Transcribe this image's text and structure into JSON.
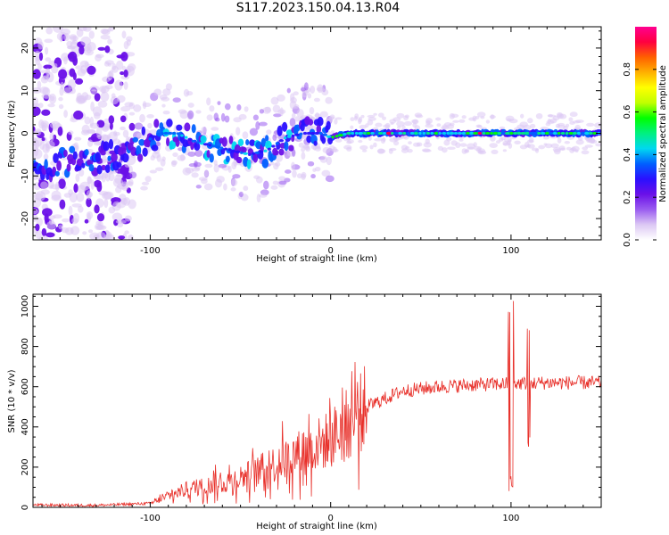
{
  "title": "S117.2023.150.04.13.R04",
  "chart_data": [
    {
      "type": "heatmap",
      "xlabel": "Height of straight line (km)",
      "ylabel": "Frequency (Hz)",
      "xlim": [
        -165,
        150
      ],
      "ylim": [
        -25,
        25
      ],
      "x_ticks": [
        -100,
        0,
        100
      ],
      "y_ticks": [
        -20,
        -10,
        0,
        10,
        20
      ],
      "colorbar": {
        "label": "Normalized spectral amplitude",
        "range": [
          0,
          1
        ],
        "ticks": [
          0.0,
          0.2,
          0.4,
          0.6,
          0.8
        ],
        "colors": [
          "#ffffff",
          "#dcc8f4",
          "#9a5cf0",
          "#6a10e8",
          "#2a10ff",
          "#0060ff",
          "#00d8f0",
          "#00f080",
          "#00ff00",
          "#c0ff00",
          "#ffff00",
          "#ffb000",
          "#ff6000",
          "#ff0040",
          "#ff0090"
        ]
      },
      "ridge": {
        "description_x": [
          -165,
          -150,
          -130,
          -110,
          -95,
          -85,
          -75,
          -65,
          -55,
          -45,
          -35,
          -25,
          -15,
          -5,
          0,
          10,
          50,
          90,
          100,
          110,
          150
        ],
        "freq_hz": [
          -8,
          -7,
          -6,
          -4,
          0,
          0,
          -2,
          -3,
          -4,
          -5,
          -4,
          -1,
          0,
          0,
          -1,
          0,
          0,
          0,
          0,
          0,
          0
        ]
      }
    },
    {
      "type": "line",
      "xlabel": "Height of straight line (km)",
      "ylabel": "SNR (10 * v/v)",
      "xlim": [
        -165,
        150
      ],
      "ylim": [
        0,
        1060
      ],
      "x_ticks": [
        -100,
        0,
        100
      ],
      "y_ticks": [
        0,
        200,
        400,
        600,
        800,
        1000
      ],
      "series_color": "#e8302a",
      "trend_x": [
        -165,
        -130,
        -100,
        -90,
        -80,
        -60,
        -40,
        -20,
        -10,
        0,
        20,
        40,
        60,
        80,
        100,
        120,
        150
      ],
      "trend_y": [
        12,
        10,
        20,
        55,
        90,
        120,
        180,
        260,
        300,
        340,
        500,
        580,
        600,
        610,
        615,
        620,
        620
      ]
    }
  ]
}
